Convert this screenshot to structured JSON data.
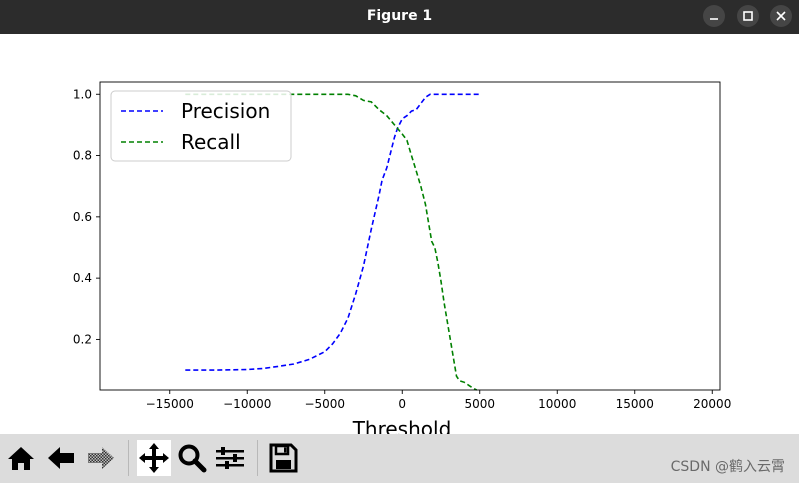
{
  "window": {
    "title": "Figure 1"
  },
  "toolbar": {
    "tools": [
      "home-icon",
      "back-arrow-icon",
      "forward-arrow-icon",
      "pan-icon",
      "zoom-icon",
      "configure-subplots-icon",
      "save-icon"
    ],
    "active_tool": "pan-icon"
  },
  "watermark": "CSDN @鹤入云霄",
  "colors": {
    "precision": "#0000ff",
    "recall": "#008000",
    "titlebar": "#2c2c2c",
    "toolbar": "#dcdcdc"
  },
  "chart_data": {
    "type": "line",
    "xlabel": "Threshold",
    "ylabel": "",
    "xlim": [
      -19500,
      20500
    ],
    "ylim": [
      0.035,
      1.04
    ],
    "xticks": [
      -15000,
      -10000,
      -5000,
      0,
      5000,
      10000,
      15000,
      20000
    ],
    "xtick_labels": [
      "−15000",
      "−10000",
      "−5000",
      "0",
      "5000",
      "10000",
      "15000",
      "20000"
    ],
    "yticks": [
      0.2,
      0.4,
      0.6,
      0.8,
      1.0
    ],
    "ytick_labels": [
      "0.2",
      "0.4",
      "0.6",
      "0.8",
      "1.0"
    ],
    "grid": false,
    "legend_position": "top-left",
    "series": [
      {
        "name": "Precision",
        "color": "#0000ff",
        "linestyle": "dashed",
        "x": [
          -14000,
          -12000,
          -10000,
          -9000,
          -8000,
          -7000,
          -6000,
          -5000,
          -4500,
          -4000,
          -3500,
          -3000,
          -2500,
          -2000,
          -1500,
          -1300,
          -1000,
          -700,
          -500,
          -300,
          0,
          300,
          600,
          900,
          1200,
          1500,
          1800,
          2500,
          3500,
          5000
        ],
        "y": [
          0.1,
          0.1,
          0.102,
          0.105,
          0.112,
          0.12,
          0.135,
          0.16,
          0.185,
          0.22,
          0.27,
          0.35,
          0.44,
          0.56,
          0.67,
          0.72,
          0.76,
          0.82,
          0.86,
          0.89,
          0.92,
          0.93,
          0.945,
          0.95,
          0.97,
          0.99,
          1.0,
          1.0,
          1.0,
          1.0
        ]
      },
      {
        "name": "Recall",
        "color": "#008000",
        "linestyle": "dashed",
        "x": [
          -14000,
          -10000,
          -6000,
          -4000,
          -3500,
          -3000,
          -2500,
          -2000,
          -1500,
          -1000,
          -500,
          0,
          300,
          600,
          900,
          1200,
          1500,
          1700,
          1900,
          2100,
          2300,
          2500,
          2700,
          2900,
          3100,
          3300,
          3500,
          3700,
          4000,
          4300,
          4600,
          4800
        ],
        "y": [
          1.0,
          1.0,
          1.0,
          1.0,
          1.0,
          0.995,
          0.98,
          0.975,
          0.95,
          0.93,
          0.9,
          0.87,
          0.85,
          0.8,
          0.75,
          0.7,
          0.64,
          0.58,
          0.52,
          0.5,
          0.45,
          0.39,
          0.32,
          0.26,
          0.2,
          0.14,
          0.08,
          0.065,
          0.06,
          0.05,
          0.04,
          0.035
        ]
      }
    ]
  }
}
